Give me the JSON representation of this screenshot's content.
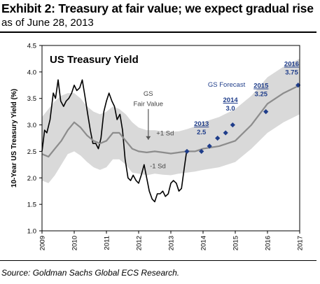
{
  "header": {
    "title": "Exhibit 2: Treasury at fair value; we expect gradual rise",
    "subtitle": "as of June 28, 2013"
  },
  "footer": {
    "source": "Source: Goldman Sachs Global ECS Research."
  },
  "colors": {
    "actual_line": "#000000",
    "fair_value_line": "#8c8c8c",
    "band_fill": "#d9d9d9",
    "forecast_marker": "#1f3d8a",
    "forecast_label": "#1f3d8a"
  },
  "chart_data": {
    "type": "line",
    "title": "US Treasury Yield",
    "xlabel": "",
    "ylabel": "10-Year US Treasury Yield (%)",
    "xlim": [
      2009.0,
      2017.0
    ],
    "ylim": [
      1.0,
      4.5
    ],
    "y_ticks": [
      "1.0",
      "1.5",
      "2.0",
      "2.5",
      "3.0",
      "3.5",
      "4.0",
      "4.5"
    ],
    "x_ticks": [
      "2009",
      "2010",
      "2011",
      "2012",
      "2013",
      "2014",
      "2015",
      "2016",
      "2017"
    ],
    "grid": false,
    "legend": "none",
    "series": [
      {
        "key": "actual",
        "x": [
          2009.0,
          2009.08,
          2009.15,
          2009.25,
          2009.35,
          2009.42,
          2009.5,
          2009.58,
          2009.67,
          2009.75,
          2009.83,
          2009.92,
          2010.0,
          2010.08,
          2010.17,
          2010.25,
          2010.33,
          2010.42,
          2010.5,
          2010.58,
          2010.67,
          2010.75,
          2010.83,
          2010.92,
          2011.0,
          2011.08,
          2011.17,
          2011.25,
          2011.33,
          2011.42,
          2011.5,
          2011.58,
          2011.67,
          2011.75,
          2011.83,
          2011.92,
          2012.0,
          2012.08,
          2012.17,
          2012.25,
          2012.33,
          2012.42,
          2012.5,
          2012.58,
          2012.67,
          2012.75,
          2012.83,
          2012.92,
          2013.0,
          2013.08,
          2013.17,
          2013.25,
          2013.33,
          2013.42,
          2013.49
        ],
        "y": [
          2.5,
          2.9,
          2.85,
          3.1,
          3.6,
          3.5,
          3.85,
          3.45,
          3.35,
          3.45,
          3.5,
          3.6,
          3.75,
          3.65,
          3.7,
          3.85,
          3.55,
          3.2,
          2.9,
          2.65,
          2.65,
          2.55,
          2.75,
          3.25,
          3.45,
          3.6,
          3.45,
          3.35,
          3.1,
          3.2,
          2.9,
          2.35,
          2.0,
          1.95,
          2.05,
          1.95,
          1.9,
          2.05,
          2.25,
          2.0,
          1.75,
          1.6,
          1.55,
          1.7,
          1.7,
          1.75,
          1.65,
          1.7,
          1.9,
          1.95,
          1.9,
          1.75,
          1.8,
          2.2,
          2.5
        ]
      },
      {
        "key": "fair_value",
        "x": [
          2009.0,
          2009.2,
          2009.4,
          2009.6,
          2009.8,
          2010.0,
          2010.2,
          2010.4,
          2010.6,
          2010.8,
          2011.0,
          2011.2,
          2011.4,
          2011.6,
          2011.8,
          2012.0,
          2012.25,
          2012.5,
          2012.75,
          2013.0,
          2013.25,
          2013.5,
          2013.75,
          2014.0,
          2014.5,
          2015.0,
          2015.5,
          2016.0,
          2016.5,
          2017.0
        ],
        "y": [
          2.45,
          2.4,
          2.55,
          2.7,
          2.9,
          3.05,
          2.95,
          2.8,
          2.7,
          2.65,
          2.7,
          2.85,
          2.85,
          2.7,
          2.55,
          2.5,
          2.48,
          2.5,
          2.48,
          2.46,
          2.48,
          2.5,
          2.5,
          2.55,
          2.6,
          2.7,
          3.0,
          3.4,
          3.6,
          3.75
        ]
      }
    ],
    "band": {
      "label_upper": "+1 Sd",
      "label_lower": "-1 Sd",
      "x": [
        2009.0,
        2009.2,
        2009.4,
        2009.6,
        2009.8,
        2010.0,
        2010.2,
        2010.4,
        2010.6,
        2010.8,
        2011.0,
        2011.2,
        2011.4,
        2011.6,
        2011.8,
        2012.0,
        2012.25,
        2012.5,
        2012.75,
        2013.0,
        2013.25,
        2013.5,
        2013.75,
        2014.0,
        2014.5,
        2015.0,
        2015.5,
        2016.0,
        2016.5,
        2017.0
      ],
      "upper": [
        3.15,
        3.3,
        3.45,
        3.55,
        3.6,
        3.6,
        3.5,
        3.35,
        3.25,
        3.2,
        3.25,
        3.35,
        3.3,
        3.2,
        3.05,
        2.95,
        2.9,
        2.9,
        2.88,
        2.87,
        2.88,
        2.92,
        2.97,
        3.05,
        3.15,
        3.3,
        3.55,
        3.9,
        4.1,
        4.25
      ],
      "lower": [
        1.95,
        1.9,
        2.05,
        2.25,
        2.45,
        2.5,
        2.42,
        2.3,
        2.2,
        2.15,
        2.2,
        2.35,
        2.35,
        2.25,
        2.1,
        2.08,
        2.05,
        2.08,
        2.06,
        2.05,
        2.08,
        2.1,
        2.12,
        2.15,
        2.2,
        2.3,
        2.55,
        2.85,
        3.05,
        3.2
      ]
    },
    "forecast_points": {
      "name": "GS Forecast",
      "x": [
        2013.5,
        2013.95,
        2014.2,
        2014.45,
        2014.7,
        2014.92,
        2015.95,
        2016.95
      ],
      "y": [
        2.5,
        2.5,
        2.6,
        2.75,
        2.85,
        3.0,
        3.25,
        3.75
      ]
    },
    "annotations": [
      {
        "key": "gs_fair_value_1",
        "text": "GS",
        "x": 2012.3,
        "y": 3.55
      },
      {
        "key": "gs_fair_value_2",
        "text": "Fair Value",
        "x": 2012.3,
        "y": 3.36
      },
      {
        "key": "forecast_2013_year",
        "text": "2013",
        "x": 2013.95,
        "y": 2.98,
        "underline": true
      },
      {
        "key": "forecast_2013_value",
        "text": "2.5",
        "x": 2013.95,
        "y": 2.82
      },
      {
        "key": "forecast_2014_year",
        "text": "2014",
        "x": 2014.85,
        "y": 3.43,
        "underline": true
      },
      {
        "key": "forecast_2014_value",
        "text": "3.0",
        "x": 2014.85,
        "y": 3.27
      },
      {
        "key": "forecast_2015_year",
        "text": "2015",
        "x": 2015.8,
        "y": 3.7,
        "underline": true
      },
      {
        "key": "forecast_2015_value",
        "text": "3.25",
        "x": 2015.8,
        "y": 3.54
      },
      {
        "key": "forecast_2016_year",
        "text": "2016",
        "x": 2016.75,
        "y": 4.11,
        "underline": true
      },
      {
        "key": "forecast_2016_value",
        "text": "3.75",
        "x": 2016.75,
        "y": 3.95
      }
    ]
  }
}
